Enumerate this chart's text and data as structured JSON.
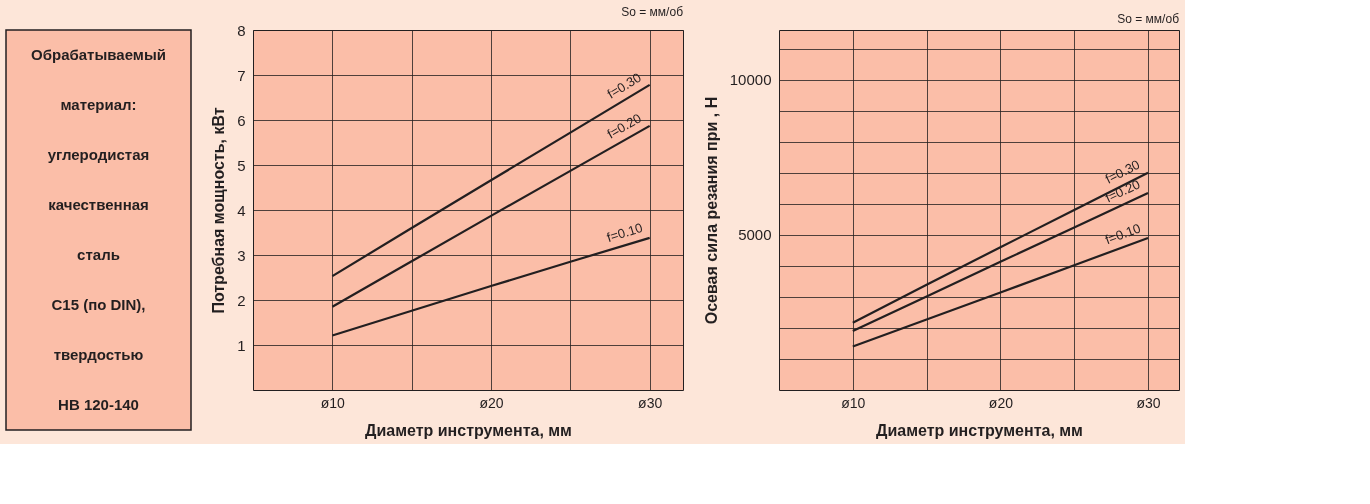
{
  "chart_data": [
    {
      "type": "other",
      "annotations": [
        "Обрабатываемый",
        "материал:",
        "углеродистая",
        "качественная",
        "сталь",
        "C15 (по DIN),",
        "твердостью",
        "HB 120-140"
      ]
    },
    {
      "type": "line",
      "annotations": [
        "So = мм/об"
      ],
      "xlabel": "Диаметр инструмента, мм",
      "ylabel": "Потребная мощность, кВт",
      "ylim": [
        0,
        8
      ],
      "categories": [
        "ø10",
        null,
        "ø20",
        null,
        "ø30"
      ],
      "yticks": [
        1,
        2,
        3,
        4,
        5,
        6,
        7,
        8
      ],
      "grid": true,
      "line_style": "solid",
      "series": [
        {
          "name": "f=0.30",
          "color": "#231f20",
          "values": [
            2.53,
            3.6,
            4.66,
            5.72,
            6.78
          ]
        },
        {
          "name": "f=0.20",
          "color": "#231f20",
          "values": [
            1.85,
            2.86,
            3.87,
            4.87,
            5.87
          ]
        },
        {
          "name": "f=0.10",
          "color": "#231f20",
          "values": [
            1.21,
            1.76,
            2.31,
            2.85,
            3.38
          ]
        }
      ]
    },
    {
      "type": "line",
      "annotations": [
        "So = мм/об"
      ],
      "xlabel": "Диаметр инструмента, мм",
      "ylabel": "Осевая сила резания при , Н",
      "ylim": [
        0,
        11600
      ],
      "categories": [
        "ø10",
        null,
        "ø20",
        null,
        "ø30"
      ],
      "yticks": [
        {
          "value": 1000,
          "label": null
        },
        {
          "value": 2000,
          "label": null
        },
        {
          "value": 3000,
          "label": null
        },
        {
          "value": 4000,
          "label": null
        },
        5000,
        {
          "value": 6000,
          "label": null
        },
        {
          "value": 7000,
          "label": null
        },
        {
          "value": 8000,
          "label": null
        },
        {
          "value": 9000,
          "label": null
        },
        10000,
        {
          "value": 11000,
          "label": null
        }
      ],
      "grid": true,
      "line_style": "solid",
      "series": [
        {
          "name": "f=0.30",
          "color": "#231f20",
          "values": [
            2170,
            3390,
            4600,
            5800,
            7000
          ]
        },
        {
          "name": "f=0.20",
          "color": "#231f20",
          "values": [
            1900,
            3010,
            4130,
            5240,
            6350
          ]
        },
        {
          "name": "f=0.10",
          "color": "#231f20",
          "values": [
            1400,
            2270,
            3140,
            4020,
            4900
          ]
        }
      ]
    }
  ]
}
